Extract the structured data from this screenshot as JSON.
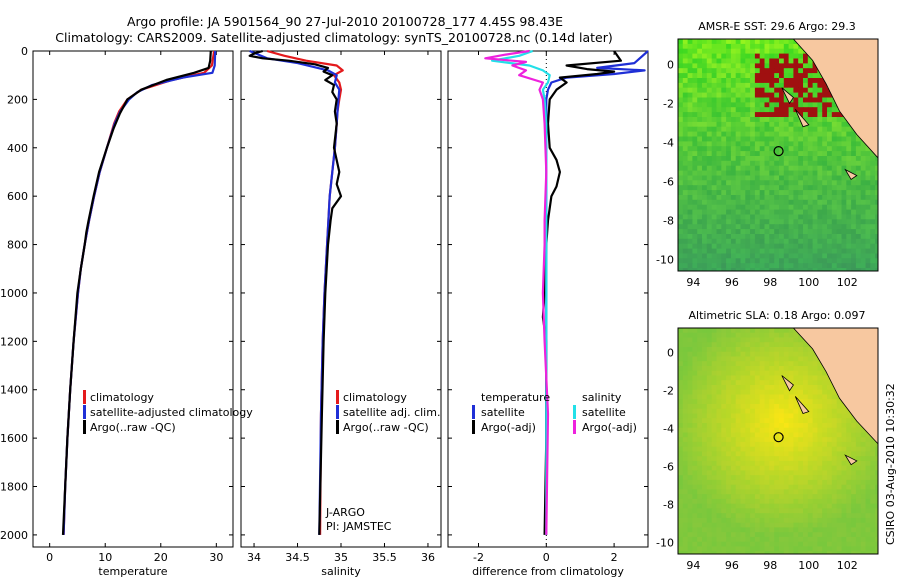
{
  "header": {
    "title_line1": "Argo profile: JA 5901564_90 27-Jul-2010 20100728_177 4.45S 98.43E",
    "title_line2": "Climatology: CARS2009. Satellite-adjusted climatology: synTS_20100728.nc (0.14d later)"
  },
  "colors": {
    "clim": "#e41a1c",
    "sat": "#1f2fd6",
    "argo": "#000000",
    "sat_cyan": "#22e0e8",
    "argo_mag": "#ee22dd",
    "land": "#f7c8a0",
    "cloud": "#ffffff"
  },
  "chart_data": [
    {
      "id": "temperature",
      "type": "line",
      "xlabel": "temperature",
      "xlim": [
        -3,
        33
      ],
      "ylim": [
        2050,
        0
      ],
      "xticks": [
        0,
        10,
        20,
        30
      ],
      "yticks": [
        0,
        200,
        400,
        600,
        800,
        1000,
        1200,
        1400,
        1600,
        1800,
        2000
      ],
      "legend": [
        "climatology",
        "satellite-adjusted climatology",
        "Argo(..raw -QC)"
      ],
      "series": [
        {
          "name": "climatology",
          "color": "clim",
          "depth": [
            0,
            60,
            90,
            120,
            160,
            200,
            250,
            300,
            400,
            500,
            600,
            700,
            800,
            900,
            1000,
            1200,
            1400,
            1600,
            1800,
            2000
          ],
          "values": [
            29.6,
            29.2,
            27.8,
            22.0,
            16.5,
            14.0,
            12.5,
            11.6,
            10.3,
            9.0,
            8.0,
            7.1,
            6.3,
            5.6,
            5.1,
            4.3,
            3.7,
            3.2,
            2.8,
            2.5
          ]
        },
        {
          "name": "satellite-adjusted climatology",
          "color": "sat",
          "depth": [
            0,
            60,
            90,
            110,
            140,
            170,
            200,
            250,
            300,
            400,
            500,
            600,
            700,
            800,
            900,
            1000,
            1200,
            1400,
            1600,
            1800,
            2000
          ],
          "values": [
            29.8,
            29.7,
            29.3,
            24.0,
            18.5,
            15.8,
            14.3,
            12.7,
            11.7,
            10.3,
            9.0,
            8.0,
            7.1,
            6.3,
            5.6,
            5.1,
            4.3,
            3.7,
            3.2,
            2.8,
            2.5
          ]
        },
        {
          "name": "Argo(..raw -QC)",
          "color": "argo",
          "depth": [
            0,
            40,
            70,
            90,
            120,
            160,
            200,
            260,
            320,
            400,
            500,
            600,
            700,
            750,
            800,
            900,
            1000,
            1200,
            1400,
            1600,
            1800,
            2000
          ],
          "values": [
            29.0,
            28.9,
            28.6,
            26.0,
            21.0,
            16.5,
            14.0,
            12.6,
            11.5,
            10.3,
            8.9,
            7.9,
            7.0,
            6.6,
            6.3,
            5.6,
            5.0,
            4.3,
            3.7,
            3.2,
            2.8,
            2.4
          ]
        }
      ]
    },
    {
      "id": "salinity",
      "type": "line",
      "xlabel": "salinity",
      "xlim": [
        33.85,
        36.15
      ],
      "ylim": [
        2050,
        0
      ],
      "xticks": [
        34,
        34.5,
        35,
        35.5,
        36
      ],
      "legend": [
        "climatology",
        "satellite adj. clim.",
        "Argo(..raw -QC)"
      ],
      "annotation": [
        "J-ARGO",
        "PI: JAMSTEC"
      ],
      "series": [
        {
          "name": "climatology",
          "color": "clim",
          "depth": [
            0,
            20,
            40,
            60,
            80,
            100,
            130,
            160,
            200,
            250,
            300,
            400,
            500,
            600,
            800,
            1000,
            1200,
            1500,
            2000
          ],
          "values": [
            34.15,
            34.35,
            34.6,
            34.95,
            35.02,
            34.92,
            34.98,
            35.0,
            34.98,
            34.96,
            34.95,
            34.93,
            34.9,
            34.87,
            34.84,
            34.81,
            34.79,
            34.77,
            34.76
          ]
        },
        {
          "name": "satellite adj. clim.",
          "color": "sat",
          "depth": [
            0,
            15,
            30,
            50,
            80,
            100,
            130,
            160,
            200,
            250,
            300,
            400,
            500,
            600,
            800,
            1000,
            1200,
            1500,
            2000
          ],
          "values": [
            33.95,
            34.05,
            34.15,
            34.5,
            34.85,
            34.95,
            34.93,
            34.98,
            34.97,
            34.96,
            34.95,
            34.93,
            34.9,
            34.87,
            34.84,
            34.81,
            34.79,
            34.77,
            34.75
          ]
        },
        {
          "name": "Argo(..raw -QC)",
          "color": "argo",
          "depth": [
            0,
            10,
            20,
            30,
            40,
            55,
            70,
            85,
            100,
            120,
            140,
            170,
            200,
            250,
            300,
            400,
            500,
            550,
            600,
            650,
            700,
            800,
            1000,
            1200,
            1500,
            2000
          ],
          "values": [
            34.1,
            34.0,
            33.95,
            34.1,
            34.4,
            34.7,
            34.85,
            34.8,
            34.9,
            34.82,
            34.92,
            34.9,
            34.95,
            34.93,
            34.95,
            34.92,
            34.98,
            34.95,
            35.0,
            34.9,
            34.88,
            34.85,
            34.82,
            34.8,
            34.78,
            34.75
          ]
        }
      ]
    },
    {
      "id": "difference",
      "type": "line",
      "xlabel": "difference from climatology",
      "xlim": [
        -2.9,
        3.0
      ],
      "ylim": [
        2050,
        0
      ],
      "xticks": [
        -2,
        0,
        2
      ],
      "legend_left": [
        "temperature",
        "satellite",
        "Argo(-adj)"
      ],
      "legend_right": [
        "salinity",
        "satellite",
        "Argo(-adj)"
      ],
      "series": [
        {
          "name": "temperature satellite",
          "color": "sat",
          "depth": [
            0,
            50,
            70,
            80,
            95,
            110,
            130,
            160,
            200,
            300,
            500,
            800,
            1200,
            1600,
            2000
          ],
          "values": [
            3.0,
            2.6,
            1.5,
            2.9,
            2.0,
            0.6,
            0.15,
            0.05,
            0.0,
            0.0,
            0.0,
            0.0,
            0.0,
            0.0,
            0.0
          ]
        },
        {
          "name": "temperature Argo(-adj)",
          "color": "argo",
          "depth": [
            0,
            40,
            60,
            75,
            85,
            95,
            110,
            130,
            160,
            200,
            300,
            400,
            450,
            500,
            560,
            600,
            700,
            800,
            1000,
            1100,
            1200,
            1600,
            2000
          ],
          "values": [
            2.0,
            2.2,
            0.6,
            1.2,
            2.0,
            1.5,
            0.4,
            0.6,
            0.3,
            0.1,
            0.05,
            0.1,
            0.3,
            0.4,
            0.3,
            0.15,
            0.05,
            0.0,
            -0.05,
            -0.1,
            0.0,
            0.0,
            -0.05
          ]
        },
        {
          "name": "salinity satellite",
          "color": "sat_cyan",
          "depth": [
            0,
            20,
            40,
            60,
            80,
            100,
            130,
            160,
            200,
            300,
            500,
            800,
            1200,
            1600,
            2000
          ],
          "values": [
            -0.4,
            -0.8,
            -1.6,
            -0.5,
            -0.1,
            0.1,
            0.05,
            -0.1,
            -0.05,
            0.0,
            0.0,
            0.0,
            0.0,
            0.0,
            0.0
          ]
        },
        {
          "name": "salinity Argo(-adj)",
          "color": "argo_mag",
          "depth": [
            0,
            15,
            30,
            45,
            60,
            80,
            100,
            130,
            160,
            200,
            300,
            500,
            700,
            800,
            1000,
            1200,
            1500,
            2000
          ],
          "values": [
            -0.5,
            -1.2,
            -1.8,
            -0.6,
            -1.0,
            -0.6,
            -0.8,
            -0.1,
            -0.2,
            -0.1,
            -0.05,
            0.0,
            -0.05,
            -0.05,
            -0.1,
            -0.05,
            0.05,
            0.0
          ]
        }
      ]
    },
    {
      "id": "sst_map",
      "type": "heatmap",
      "title": "AMSR-E SST: 29.6 Argo: 29.3",
      "xlim": [
        93.2,
        103.6
      ],
      "ylim": [
        -10.6,
        1.3
      ],
      "xticks": [
        94,
        96,
        98,
        100,
        102
      ],
      "yticks": [
        0,
        -2,
        -4,
        -6,
        -8,
        -10
      ],
      "marker": {
        "lon": 98.43,
        "lat": -4.45
      }
    },
    {
      "id": "sla_map",
      "type": "heatmap",
      "title": "Altimetric SLA: 0.18 Argo: 0.097",
      "xlim": [
        93.2,
        103.6
      ],
      "ylim": [
        -10.6,
        1.3
      ],
      "xticks": [
        94,
        96,
        98,
        100,
        102
      ],
      "yticks": [
        0,
        -2,
        -4,
        -6,
        -8,
        -10
      ],
      "marker": {
        "lon": 98.43,
        "lat": -4.45
      }
    }
  ],
  "footer": {
    "credit": "CSIRO 03-Aug-2010 10:30:32"
  }
}
